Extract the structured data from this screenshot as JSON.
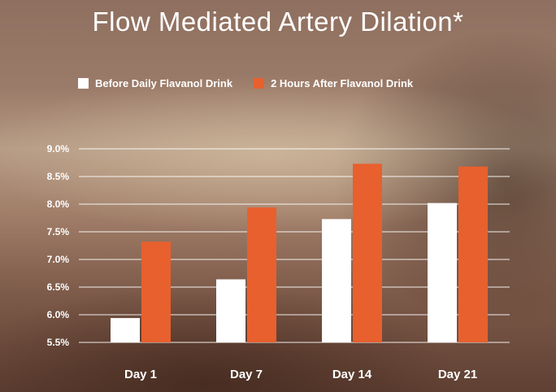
{
  "title": "Flow Mediated Artery Dilation*",
  "colors": {
    "before": "#ffffff",
    "after": "#e8602e",
    "grid": "#ffffff"
  },
  "chart_data": {
    "type": "bar",
    "title": "Flow Mediated Artery Dilation*",
    "xlabel": "",
    "ylabel": "",
    "categories": [
      "Day 1",
      "Day 7",
      "Day 14",
      "Day 21"
    ],
    "series": [
      {
        "name": "Before Daily Flavanol Drink",
        "values": [
          5.94,
          6.64,
          7.73,
          8.02
        ]
      },
      {
        "name": "2 Hours After Flavanol Drink",
        "values": [
          7.32,
          7.94,
          8.73,
          8.68
        ]
      }
    ],
    "ylim": [
      5.5,
      9.0
    ],
    "yticks": [
      "9.0%",
      "8.5%",
      "8.0%",
      "7.5%",
      "7.0%",
      "6.5%",
      "6.0%",
      "5.5%"
    ],
    "ytick_values": [
      9.0,
      8.5,
      8.0,
      7.5,
      7.0,
      6.5,
      6.0,
      5.5
    ],
    "grid": true,
    "legend": "top"
  }
}
